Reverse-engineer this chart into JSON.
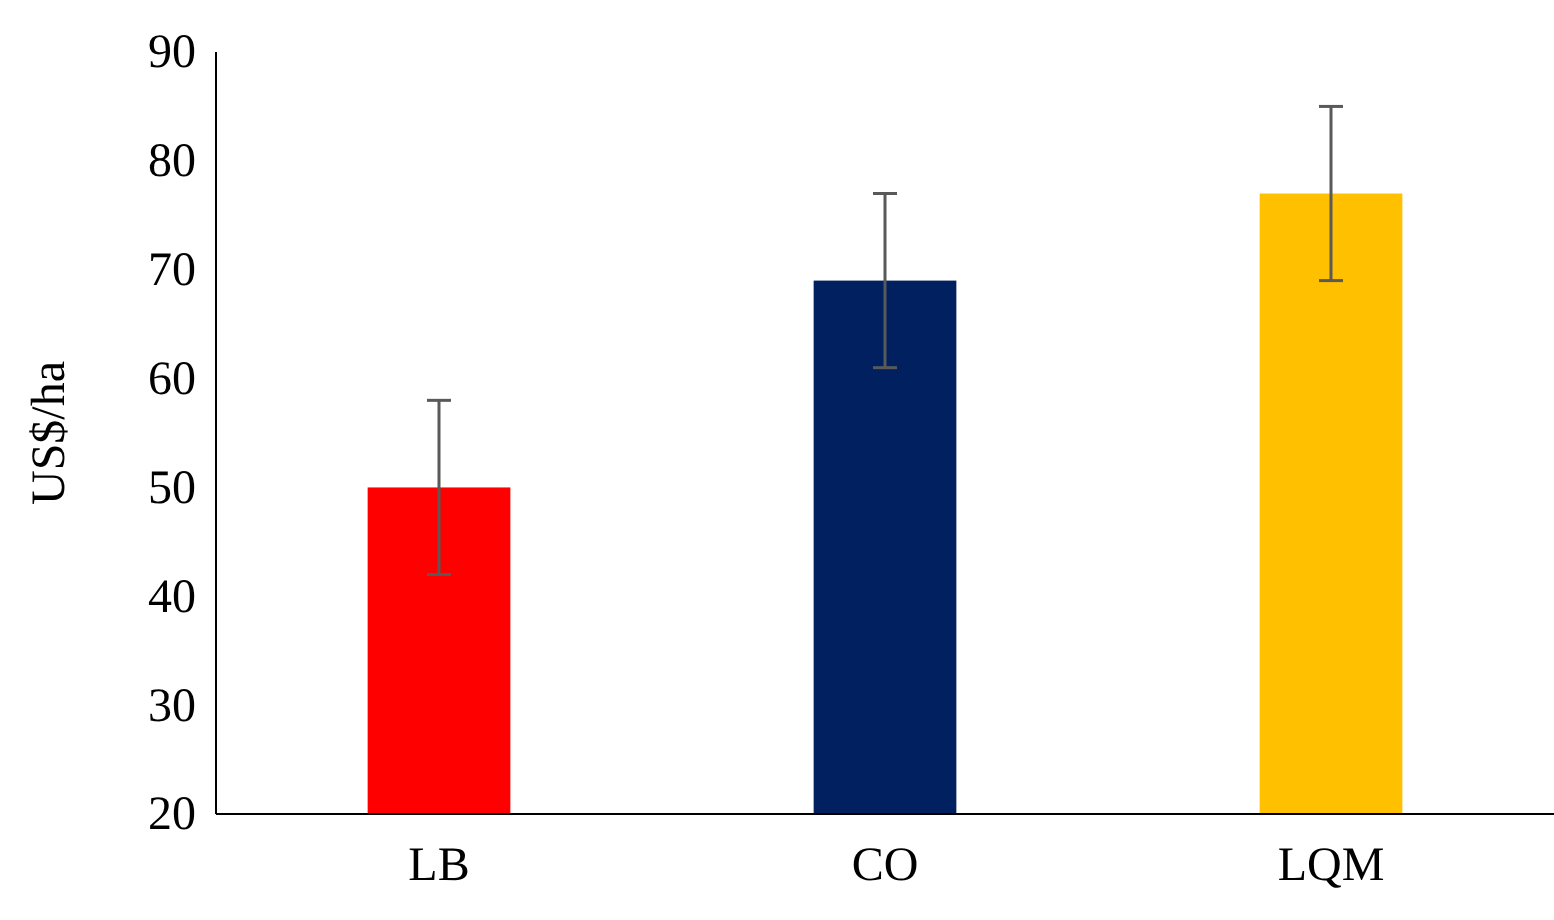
{
  "chart_data": {
    "type": "bar",
    "ylabel": "US$/ha",
    "categories": [
      "LB",
      "CO",
      "LQM"
    ],
    "values": [
      50,
      69,
      77
    ],
    "colors": [
      "#ff0000",
      "#002060",
      "#ffc000"
    ],
    "errors": [
      8,
      8,
      8
    ],
    "ylim": [
      20,
      90
    ],
    "yticks": [
      20,
      30,
      40,
      50,
      60,
      70,
      80,
      90
    ],
    "grid": false
  }
}
